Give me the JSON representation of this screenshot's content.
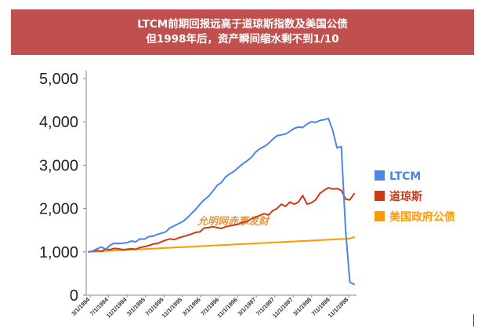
{
  "header": {
    "line1": "LTCM前期回报远高于道琼斯指数及美国公债",
    "line2": "但1998年后，资产瞬间缩水剩不到1/10",
    "background": "#c0504d"
  },
  "watermark": "允明网赤事发财",
  "chart_data": {
    "type": "line",
    "title": "",
    "xlabel": "",
    "ylabel": "",
    "ylim": [
      0,
      5000
    ],
    "yticks": [
      0,
      1000,
      2000,
      3000,
      4000,
      5000
    ],
    "ytick_labels": [
      "0",
      "1,000",
      "2,000",
      "3,000",
      "4,000",
      "5,000"
    ],
    "xtick_labels": [
      "3/1/1994",
      "7/1/1994",
      "11/1/1994",
      "3/1/1995",
      "7/1/1995",
      "11/1/1995",
      "3/1/1996",
      "7/1/1996",
      "11/1/1996",
      "3/1/1997",
      "7/1/1997",
      "11/1/1997",
      "3/1/1998",
      "7/1/1998",
      "11/1/1998"
    ],
    "grid": false,
    "legend_position": "right",
    "series": [
      {
        "name": "LTCM",
        "color": "#4a86e8",
        "values": [
          1000,
          1020,
          1070,
          1110,
          1060,
          1150,
          1200,
          1190,
          1200,
          1210,
          1250,
          1230,
          1300,
          1290,
          1350,
          1360,
          1400,
          1430,
          1460,
          1550,
          1600,
          1650,
          1700,
          1780,
          1880,
          1980,
          2100,
          2200,
          2280,
          2400,
          2530,
          2600,
          2730,
          2800,
          2860,
          2950,
          3030,
          3100,
          3180,
          3300,
          3380,
          3430,
          3500,
          3600,
          3680,
          3700,
          3720,
          3780,
          3850,
          3880,
          3870,
          3950,
          4000,
          3990,
          4030,
          4050,
          4080,
          3800,
          3400,
          3430,
          1500,
          300,
          250
        ]
      },
      {
        "name": "道琼斯",
        "color": "#cc3a14",
        "values": [
          1000,
          1010,
          1030,
          1010,
          1060,
          1050,
          1080,
          1070,
          1050,
          1060,
          1070,
          1060,
          1100,
          1120,
          1140,
          1180,
          1190,
          1230,
          1270,
          1300,
          1280,
          1320,
          1350,
          1380,
          1410,
          1450,
          1460,
          1550,
          1560,
          1580,
          1560,
          1540,
          1580,
          1600,
          1620,
          1640,
          1680,
          1700,
          1760,
          1800,
          1840,
          1880,
          1850,
          1950,
          2000,
          2100,
          2050,
          2150,
          2100,
          2150,
          2300,
          2100,
          2130,
          2200,
          2350,
          2420,
          2480,
          2450,
          2460,
          2420,
          2220,
          2200,
          2340
        ]
      },
      {
        "name": "美国政府公债",
        "color": "#ff9900",
        "values": [
          1000,
          1005,
          1010,
          1015,
          1020,
          1025,
          1030,
          1035,
          1040,
          1045,
          1050,
          1055,
          1060,
          1065,
          1070,
          1075,
          1080,
          1085,
          1090,
          1095,
          1100,
          1105,
          1110,
          1115,
          1120,
          1125,
          1130,
          1135,
          1140,
          1145,
          1150,
          1155,
          1160,
          1165,
          1170,
          1175,
          1180,
          1185,
          1190,
          1195,
          1200,
          1205,
          1210,
          1215,
          1220,
          1225,
          1230,
          1235,
          1240,
          1245,
          1250,
          1255,
          1260,
          1265,
          1270,
          1275,
          1280,
          1285,
          1290,
          1295,
          1300,
          1310,
          1340
        ]
      }
    ]
  }
}
